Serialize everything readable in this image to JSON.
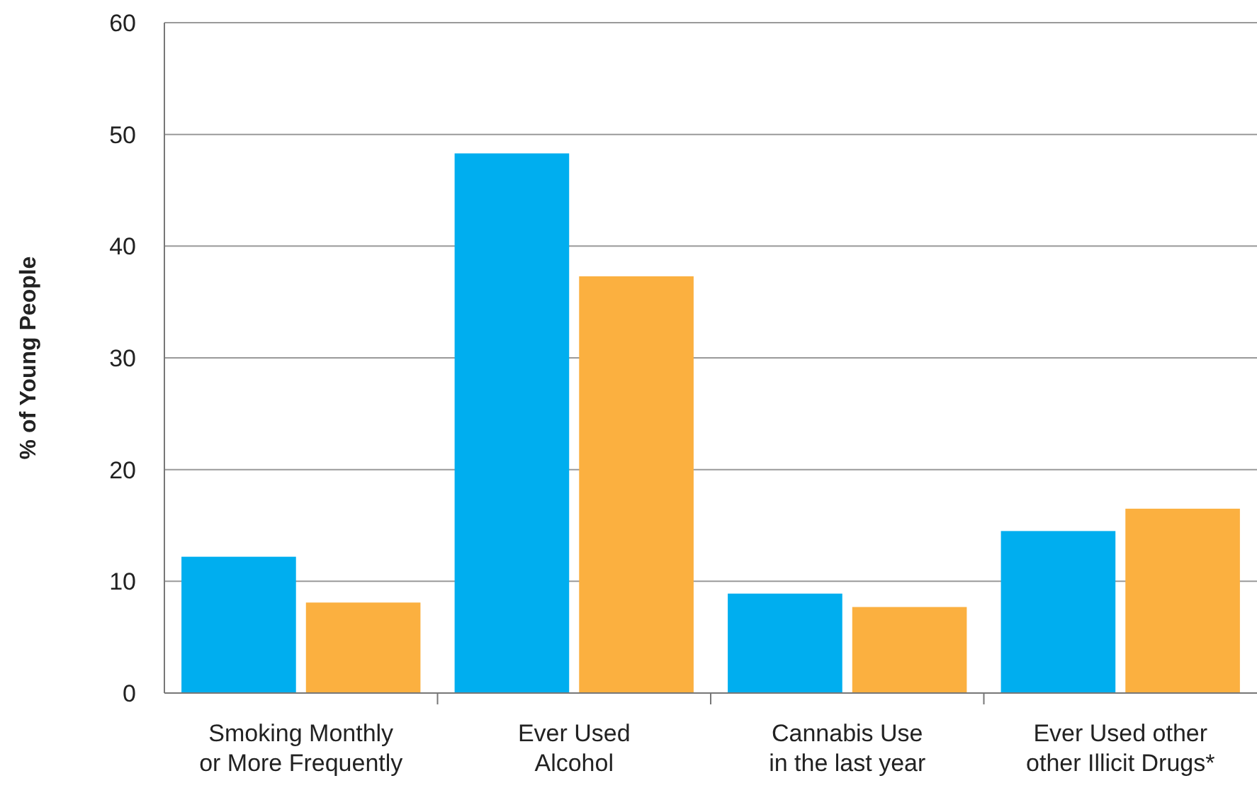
{
  "chart_data": {
    "type": "bar",
    "ylabel": "% of Young People",
    "categories": [
      "Smoking Monthly\nor More Frequently",
      "Ever Used\nAlcohol",
      "Cannabis Use\nin the last year",
      "Ever Used other\nother Illicit Drugs*"
    ],
    "series": [
      {
        "color": "#00aeef",
        "values": [
          12.2,
          48.3,
          8.9,
          14.5
        ]
      },
      {
        "color": "#fbb040",
        "values": [
          8.1,
          37.3,
          7.7,
          16.5
        ]
      }
    ],
    "ylim": [
      0,
      60
    ],
    "yticks": [
      0,
      10,
      20,
      30,
      40,
      50,
      60
    ],
    "grid": "y"
  }
}
